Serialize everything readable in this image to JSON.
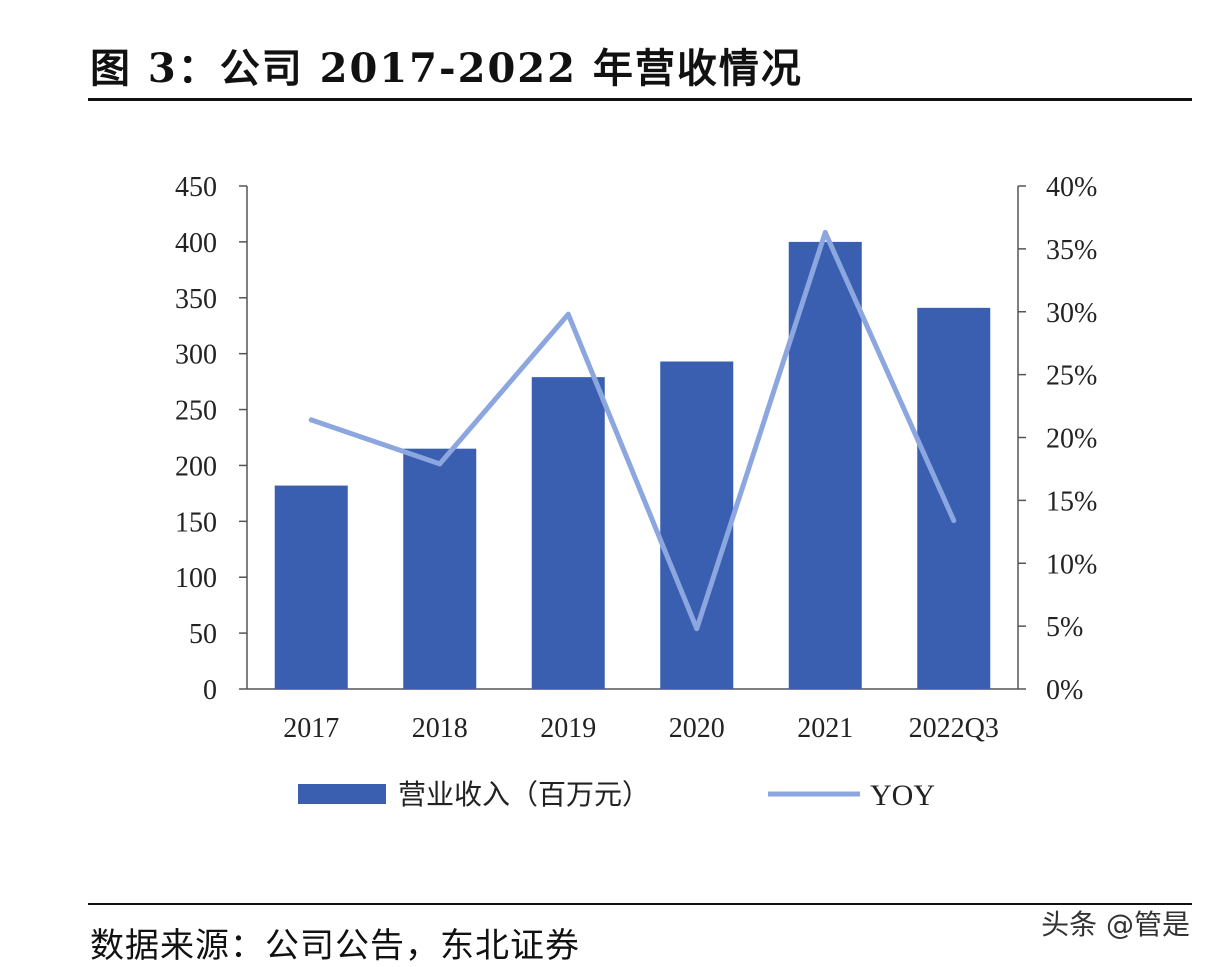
{
  "figure": {
    "title": "图 3：公司 2017-2022 年营收情况",
    "source": "数据来源：公司公告，东北证券",
    "watermark": "头条 @管是"
  },
  "chart_data": {
    "type": "bar+line",
    "categories": [
      "2017",
      "2018",
      "2019",
      "2020",
      "2021",
      "2022Q3"
    ],
    "series": [
      {
        "name": "营业收入（百万元）",
        "type": "bar",
        "axis": "left",
        "values": [
          182,
          215,
          279,
          293,
          400,
          341
        ],
        "color": "#3a5fb0"
      },
      {
        "name": "YOY",
        "type": "line",
        "axis": "right",
        "values": [
          0.214,
          0.179,
          0.298,
          0.048,
          0.363,
          0.134
        ],
        "color": "#8ca6e0"
      }
    ],
    "left_axis": {
      "ticks": [
        "0",
        "50",
        "100",
        "150",
        "200",
        "250",
        "300",
        "350",
        "400",
        "450"
      ],
      "ylim": [
        0,
        450
      ]
    },
    "right_axis": {
      "ticks": [
        "0%",
        "5%",
        "10%",
        "15%",
        "20%",
        "25%",
        "30%",
        "35%",
        "40%"
      ],
      "ylim": [
        0,
        0.4
      ]
    },
    "grid": false,
    "legend_position": "bottom"
  }
}
